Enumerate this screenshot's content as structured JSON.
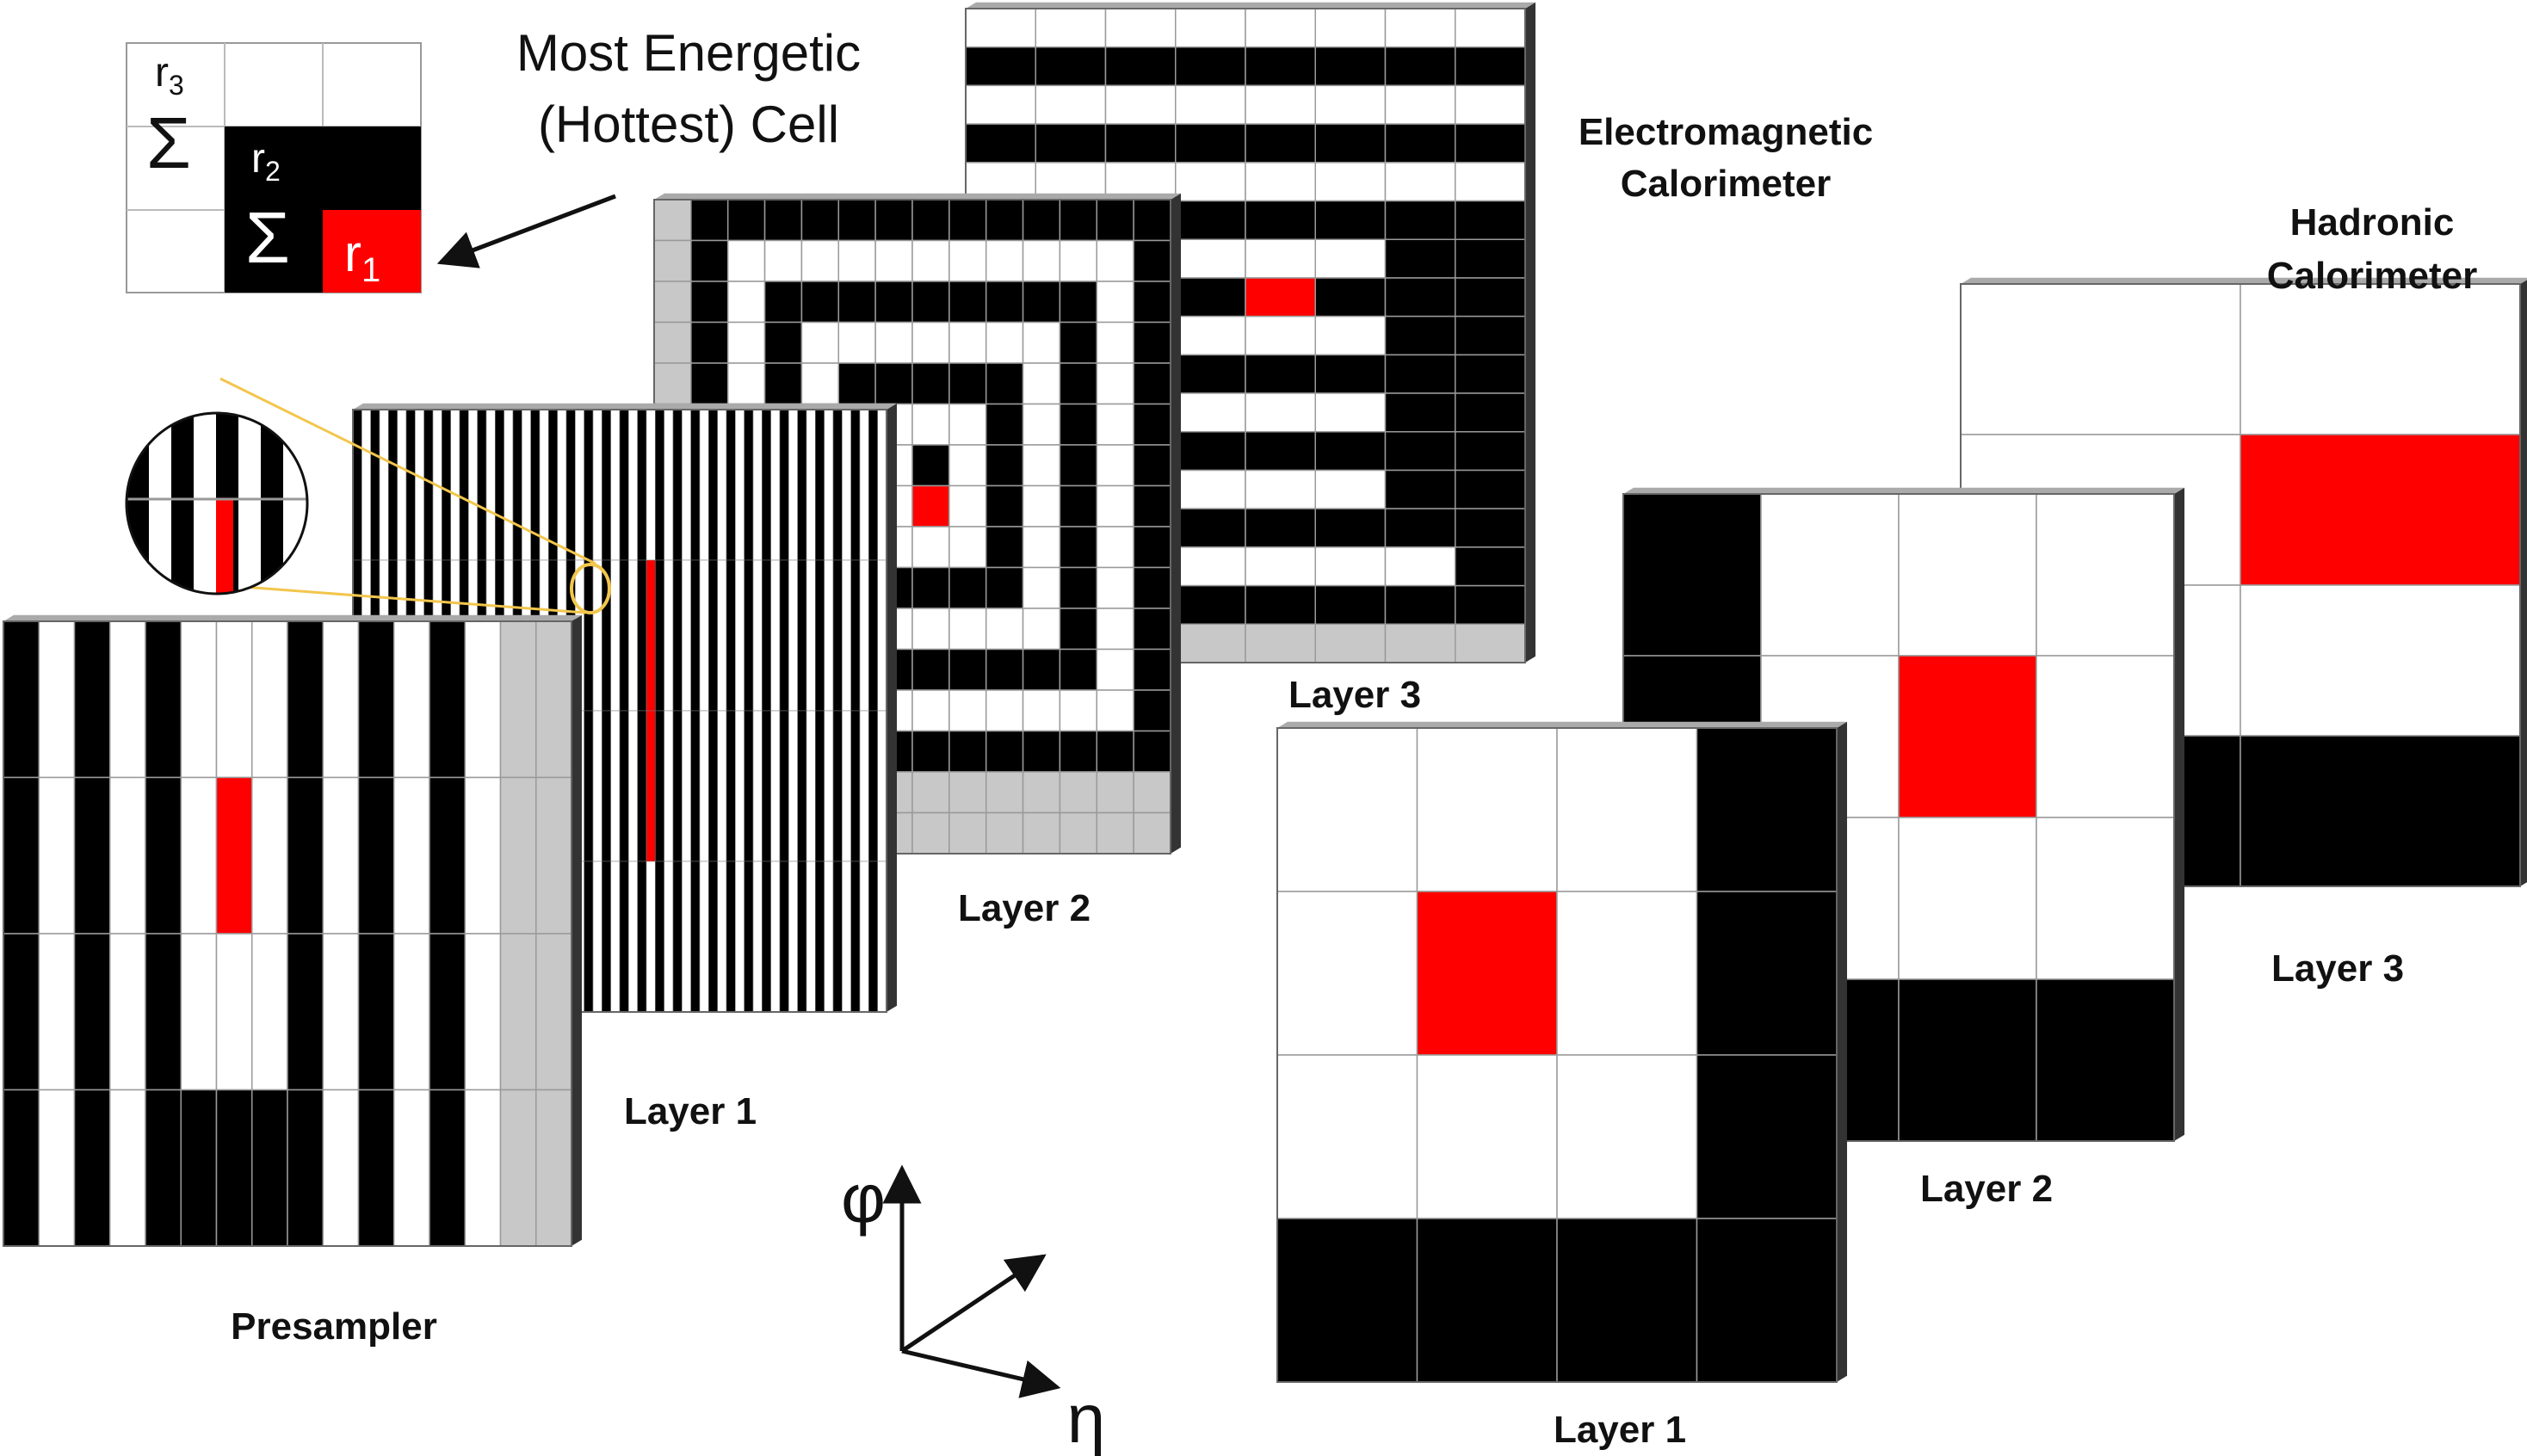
{
  "labels": {
    "em_title_line1": "Electromagnetic",
    "em_title_line2": "Calorimeter",
    "had_title_line1": "Hadronic",
    "had_title_line2": "Calorimeter",
    "presampler": "Presampler",
    "em_layer1": "Layer 1",
    "em_layer2": "Layer 2",
    "em_layer3": "Layer 3",
    "had_layer1": "Layer 1",
    "had_layer2": "Layer 2",
    "had_layer3": "Layer 3",
    "hottest_line1": "Most Energetic",
    "hottest_line2": "(Hottest) Cell",
    "axis_phi": "φ",
    "axis_eta": "η",
    "inset_r1": "r",
    "inset_r1_sub": "1",
    "inset_r2": "r",
    "inset_r2_sub": "2",
    "inset_r3": "r",
    "inset_r3_sub": "3",
    "inset_sum_a": "Σ",
    "inset_sum_b": "Σ"
  },
  "colors": {
    "hot": "#ff0000",
    "black": "#000000",
    "white": "#ffffff",
    "gray": "#c8c8c8",
    "edge": "#999999",
    "line": "#f2c64d"
  },
  "icons": [
    "arrow-icon",
    "magnifier-lens-icon",
    "axis-arrow-icon"
  ]
}
